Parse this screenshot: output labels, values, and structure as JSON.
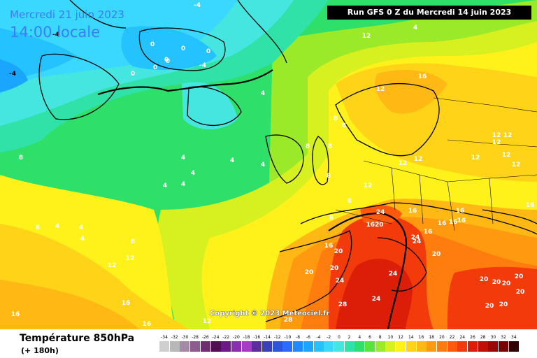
{
  "header": {
    "date": "Mercredi 21 juin 2023",
    "time": "14:00 locale",
    "run": "Run GFS 0 Z du Mercredi 14 juin 2023"
  },
  "copyright": "Copyright © 2023 Meteociel.fr",
  "legend": {
    "title": "Température 850hPa",
    "subtitle": "(+ 180h)",
    "scale": [
      {
        "label": "-34",
        "color": "#cfcfcf"
      },
      {
        "label": "-32",
        "color": "#b8b8b8"
      },
      {
        "label": "-30",
        "color": "#a48aa4"
      },
      {
        "label": "-28",
        "color": "#8c5c8c"
      },
      {
        "label": "-26",
        "color": "#6e2f6e"
      },
      {
        "label": "-24",
        "color": "#50104f"
      },
      {
        "label": "-22",
        "color": "#6a1a86"
      },
      {
        "label": "-20",
        "color": "#8a2fb0"
      },
      {
        "label": "-18",
        "color": "#a43cc8"
      },
      {
        "label": "-16",
        "color": "#5a2ea0"
      },
      {
        "label": "-14",
        "color": "#3b3fb8"
      },
      {
        "label": "-12",
        "color": "#2c55d8"
      },
      {
        "label": "-10",
        "color": "#2a6cff"
      },
      {
        "label": "-8",
        "color": "#1e8cff"
      },
      {
        "label": "-6",
        "color": "#1aa6ff"
      },
      {
        "label": "-4",
        "color": "#24c2ff"
      },
      {
        "label": "-2",
        "color": "#3ad8ff"
      },
      {
        "label": "0",
        "color": "#46e6e0"
      },
      {
        "label": "2",
        "color": "#30e2a8"
      },
      {
        "label": "4",
        "color": "#2ee06a"
      },
      {
        "label": "6",
        "color": "#5ae43a"
      },
      {
        "label": "8",
        "color": "#9aea2a"
      },
      {
        "label": "10",
        "color": "#d6f020"
      },
      {
        "label": "12",
        "color": "#fff21a"
      },
      {
        "label": "14",
        "color": "#ffd418"
      },
      {
        "label": "16",
        "color": "#ffb814"
      },
      {
        "label": "18",
        "color": "#ff9a10"
      },
      {
        "label": "20",
        "color": "#ff7c0e"
      },
      {
        "label": "22",
        "color": "#ff5a0c"
      },
      {
        "label": "24",
        "color": "#f23a0a"
      },
      {
        "label": "26",
        "color": "#dc1e08"
      },
      {
        "label": "28",
        "color": "#c01006"
      },
      {
        "label": "30",
        "color": "#9c0604"
      },
      {
        "label": "32",
        "color": "#780202"
      },
      {
        "label": "34",
        "color": "#300000"
      }
    ]
  },
  "map_labels": [
    {
      "t": "-4",
      "c": "#000"
    },
    {
      "t": "-4",
      "c": "#000"
    },
    {
      "t": "0",
      "c": "#fff"
    },
    {
      "t": "0",
      "c": "#fff"
    },
    {
      "t": "0",
      "c": "#fff"
    },
    {
      "t": "0",
      "c": "#fff"
    },
    {
      "t": "0",
      "c": "#fff"
    },
    {
      "t": "0",
      "c": "#fff"
    },
    {
      "t": "0",
      "c": "#fff"
    },
    {
      "t": "-4",
      "c": "#fff"
    },
    {
      "t": "-4",
      "c": "#fff"
    },
    {
      "t": "4",
      "c": "#fff"
    },
    {
      "t": "4",
      "c": "#fff"
    },
    {
      "t": "4",
      "c": "#fff"
    },
    {
      "t": "4",
      "c": "#fff"
    },
    {
      "t": "4",
      "c": "#fff"
    },
    {
      "t": "4",
      "c": "#fff"
    },
    {
      "t": "4",
      "c": "#fff"
    },
    {
      "t": "4",
      "c": "#fff"
    },
    {
      "t": "4",
      "c": "#fff"
    },
    {
      "t": "4",
      "c": "#fff"
    },
    {
      "t": "4",
      "c": "#fff"
    },
    {
      "t": "8",
      "c": "#fff"
    },
    {
      "t": "8",
      "c": "#fff"
    },
    {
      "t": "8",
      "c": "#fff"
    },
    {
      "t": "8",
      "c": "#fff"
    },
    {
      "t": "8",
      "c": "#fff"
    },
    {
      "t": "8",
      "c": "#fff"
    },
    {
      "t": "8",
      "c": "#fff"
    },
    {
      "t": "8",
      "c": "#fff"
    },
    {
      "t": "8",
      "c": "#fff"
    },
    {
      "t": "8",
      "c": "#fff"
    },
    {
      "t": "12",
      "c": "#fff"
    },
    {
      "t": "12",
      "c": "#fff"
    },
    {
      "t": "12",
      "c": "#fff"
    },
    {
      "t": "12",
      "c": "#fff"
    },
    {
      "t": "12",
      "c": "#fff"
    },
    {
      "t": "12",
      "c": "#fff"
    },
    {
      "t": "12",
      "c": "#fff"
    },
    {
      "t": "12",
      "c": "#fff"
    },
    {
      "t": "12",
      "c": "#fff"
    },
    {
      "t": "12",
      "c": "#fff"
    },
    {
      "t": "12",
      "c": "#fff"
    },
    {
      "t": "12",
      "c": "#fff"
    },
    {
      "t": "12",
      "c": "#fff"
    },
    {
      "t": "12",
      "c": "#fff"
    },
    {
      "t": "16",
      "c": "#fff"
    },
    {
      "t": "16",
      "c": "#fff"
    },
    {
      "t": "16",
      "c": "#fff"
    },
    {
      "t": "16",
      "c": "#fff"
    },
    {
      "t": "16",
      "c": "#fff"
    },
    {
      "t": "16",
      "c": "#fff"
    },
    {
      "t": "16",
      "c": "#fff"
    },
    {
      "t": "16",
      "c": "#fff"
    },
    {
      "t": "16",
      "c": "#fff"
    },
    {
      "t": "16",
      "c": "#fff"
    },
    {
      "t": "16",
      "c": "#fff"
    },
    {
      "t": "16",
      "c": "#fff"
    },
    {
      "t": "20",
      "c": "#fff"
    },
    {
      "t": "20",
      "c": "#fff"
    },
    {
      "t": "20",
      "c": "#fff"
    },
    {
      "t": "20",
      "c": "#fff"
    },
    {
      "t": "20",
      "c": "#fff"
    },
    {
      "t": "20",
      "c": "#fff"
    },
    {
      "t": "20",
      "c": "#fff"
    },
    {
      "t": "20",
      "c": "#fff"
    },
    {
      "t": "20",
      "c": "#fff"
    },
    {
      "t": "20",
      "c": "#fff"
    },
    {
      "t": "20",
      "c": "#fff"
    },
    {
      "t": "24",
      "c": "#fff"
    },
    {
      "t": "24",
      "c": "#fff"
    },
    {
      "t": "24",
      "c": "#fff"
    },
    {
      "t": "24",
      "c": "#fff"
    },
    {
      "t": "24",
      "c": "#fff"
    },
    {
      "t": "24",
      "c": "#fff"
    },
    {
      "t": "28",
      "c": "#fff"
    },
    {
      "t": "28",
      "c": "#fff"
    },
    {
      "t": "1620",
      "c": "#fff"
    }
  ]
}
